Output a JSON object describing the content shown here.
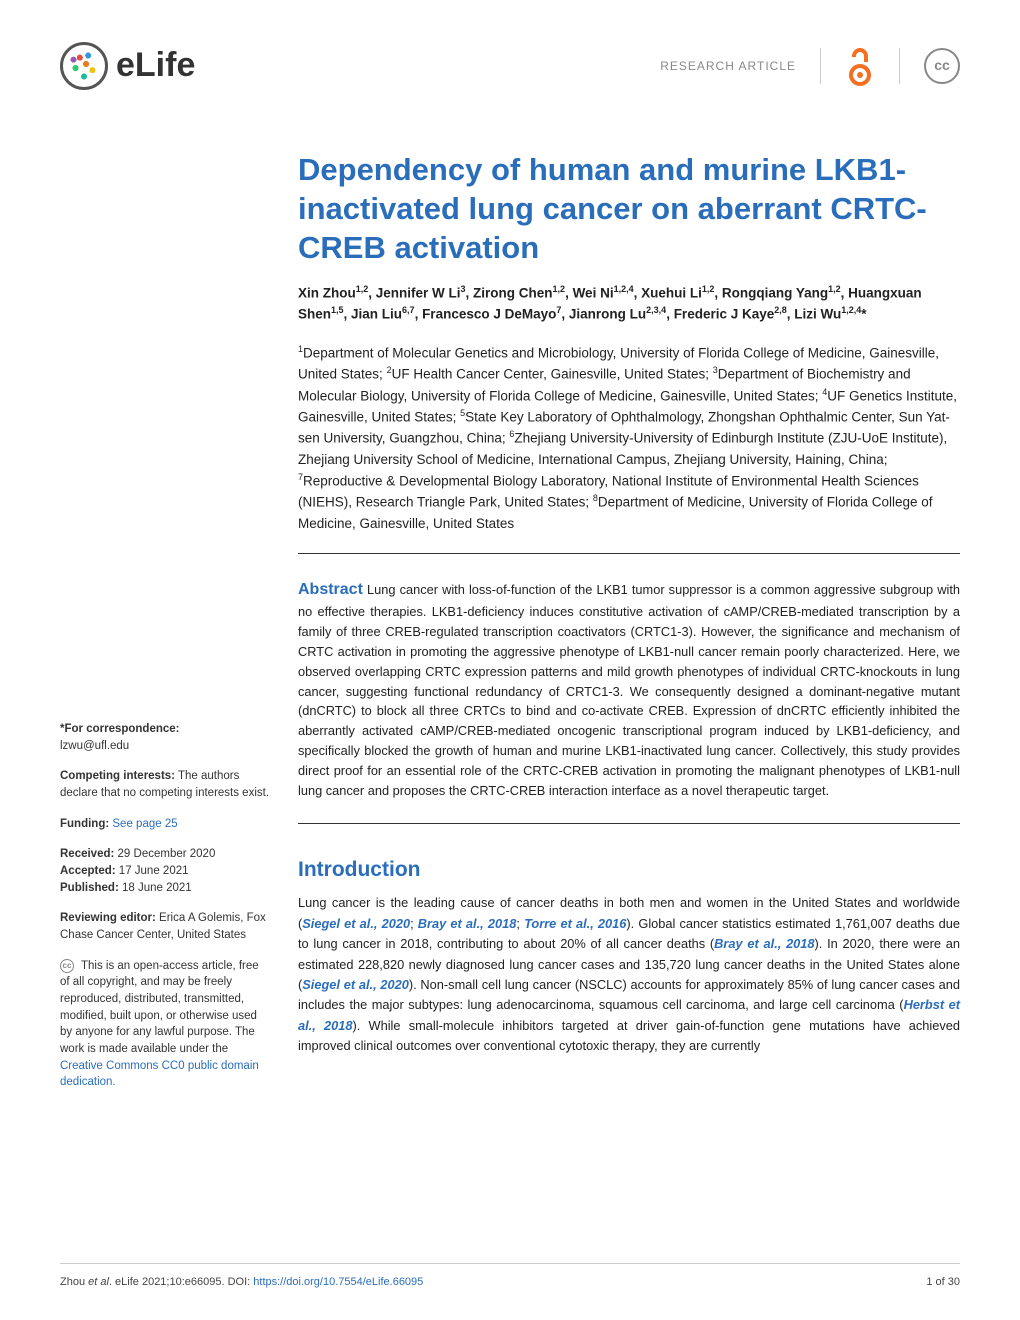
{
  "header": {
    "logo_text": "eLife",
    "article_type": "RESEARCH ARTICLE",
    "cc_label": "cc",
    "oa_color": "#f36f21"
  },
  "article": {
    "title": "Dependency of human and murine LKB1-inactivated lung cancer on aberrant CRTC-CREB activation",
    "authors_html": "Xin Zhou<sup>1,2</sup>, Jennifer W Li<sup>3</sup>, Zirong Chen<sup>1,2</sup>, Wei Ni<sup>1,2,4</sup>, Xuehui Li<sup>1,2</sup>, Rongqiang Yang<sup>1,2</sup>, Huangxuan Shen<sup>1,5</sup>, Jian Liu<sup>6,7</sup>, Francesco J DeMayo<sup>7</sup>, Jianrong Lu<sup>2,3,4</sup>, Frederic J Kaye<sup>2,8</sup>, Lizi Wu<sup>1,2,4</sup>*",
    "affiliations_html": "<sup>1</sup>Department of Molecular Genetics and Microbiology, University of Florida College of Medicine, Gainesville, United States; <sup>2</sup>UF Health Cancer Center, Gainesville, United States; <sup>3</sup>Department of Biochemistry and Molecular Biology, University of Florida College of Medicine, Gainesville, United States; <sup>4</sup>UF Genetics Institute, Gainesville, United States; <sup>5</sup>State Key Laboratory of Ophthalmology, Zhongshan Ophthalmic Center, Sun Yat-sen University, Guangzhou, China; <sup>6</sup>Zhejiang University-University of Edinburgh Institute (ZJU-UoE Institute), Zhejiang University School of Medicine, International Campus, Zhejiang University, Haining, China; <sup>7</sup>Reproductive & Developmental Biology Laboratory, National Institute of Environmental Health Sciences (NIEHS), Research Triangle Park, United States; <sup>8</sup>Department of Medicine, University of Florida College of Medicine, Gainesville, United States",
    "abstract_label": "Abstract",
    "abstract_text": "Lung cancer with loss-of-function of the LKB1 tumor suppressor is a common aggressive subgroup with no effective therapies. LKB1-deficiency induces constitutive activation of cAMP/CREB-mediated transcription by a family of three CREB-regulated transcription coactivators (CRTC1-3). However, the significance and mechanism of CRTC activation in promoting the aggressive phenotype of LKB1-null cancer remain poorly characterized. Here, we observed overlapping CRTC expression patterns and mild growth phenotypes of individual CRTC-knockouts in lung cancer, suggesting functional redundancy of CRTC1-3. We consequently designed a dominant-negative mutant (dnCRTC) to block all three CRTCs to bind and co-activate CREB. Expression of dnCRTC efficiently inhibited the aberrantly activated cAMP/CREB-mediated oncogenic transcriptional program induced by LKB1-deficiency, and specifically blocked the growth of human and murine LKB1-inactivated lung cancer. Collectively, this study provides direct proof for an essential role of the CRTC-CREB activation in promoting the malignant phenotypes of LKB1-null lung cancer and proposes the CRTC-CREB interaction interface as a novel therapeutic target.",
    "intro_heading": "Introduction",
    "intro_html": "Lung cancer is the leading cause of cancer deaths in both men and women in the United States and worldwide (<span class='cite'>Siegel et al., 2020</span>; <span class='cite'>Bray et al., 2018</span>; <span class='cite'>Torre et al., 2016</span>). Global cancer statistics estimated 1,761,007 deaths due to lung cancer in 2018, contributing to about 20% of all cancer deaths (<span class='cite'>Bray et al., 2018</span>). In 2020, there were an estimated 228,820 newly diagnosed lung cancer cases and 135,720 lung cancer deaths in the United States alone (<span class='cite'>Siegel et al., 2020</span>). Non-small cell lung cancer (NSCLC) accounts for approximately 85% of lung cancer cases and includes the major subtypes: lung adenocarcinoma, squamous cell carcinoma, and large cell carcinoma (<span class='cite'>Herbst et al., 2018</span>). While small-molecule inhibitors targeted at driver gain-of-function gene mutations have achieved improved clinical outcomes over conventional cytotoxic therapy, they are currently"
  },
  "sidebar": {
    "correspondence_label": "*For correspondence:",
    "correspondence_email": "lzwu@ufl.edu",
    "competing_label": "Competing interests:",
    "competing_text": " The authors declare that no competing interests exist.",
    "funding_label": "Funding:",
    "funding_link": "See page 25",
    "received_label": "Received:",
    "received_value": " 29 December 2020",
    "accepted_label": "Accepted:",
    "accepted_value": " 17 June 2021",
    "published_label": "Published:",
    "published_value": " 18 June 2021",
    "editor_label": "Reviewing editor:",
    "editor_value": "  Erica A Golemis, Fox Chase Cancer Center, United States",
    "license_text": " This is an open-access article, free of all copyright, and may be freely reproduced, distributed, transmitted, modified, built upon, or otherwise used by anyone for any lawful purpose. The work is made available under the ",
    "license_link": "Creative Commons CC0 public domain dedication.",
    "cc_small": "cc"
  },
  "footer": {
    "citation_prefix": "Zhou ",
    "citation_et_al": "et al",
    "citation_rest": ". eLife 2021;10:e66095. DOI: ",
    "doi": "https://doi.org/10.7554/eLife.66095",
    "page": "1 of 30"
  },
  "colors": {
    "accent": "#2a6ebb",
    "text": "#222222",
    "muted": "#888888"
  }
}
